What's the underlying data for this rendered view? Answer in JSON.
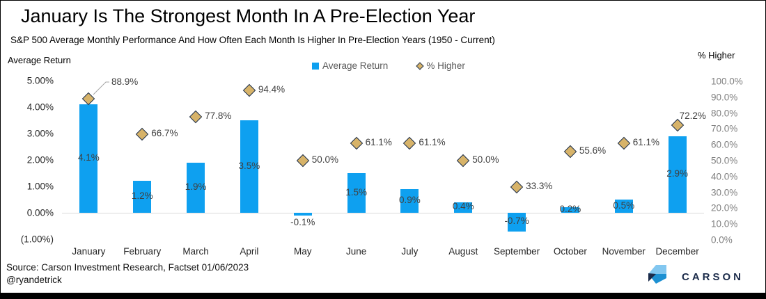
{
  "title": "January Is The Strongest Month In A Pre-Election Year",
  "subtitle": "S&P 500 Average Monthly Performance And How Often Each Month Is Higher In Pre-Election Years (1950 - Current)",
  "axes": {
    "left_title": "Average Return",
    "right_title": "% Higher"
  },
  "legend": {
    "items": [
      {
        "label": "Average Return",
        "marker": "square-icon",
        "color": "#0EA0F0"
      },
      {
        "label": "% Higher",
        "marker": "diamond-icon",
        "color": "#D7B369"
      }
    ]
  },
  "chart_data": {
    "type": "combo",
    "categories": [
      "January",
      "February",
      "March",
      "April",
      "May",
      "June",
      "July",
      "August",
      "September",
      "October",
      "November",
      "December"
    ],
    "series": [
      {
        "name": "Average Return",
        "type": "bar",
        "axis": "left",
        "unit": "%",
        "values": [
          4.1,
          1.2,
          1.9,
          3.5,
          -0.1,
          1.5,
          0.9,
          0.4,
          -0.7,
          0.2,
          0.5,
          2.9
        ],
        "labels": [
          "4.1%",
          "1.2%",
          "1.9%",
          "3.5%",
          "-0.1%",
          "1.5%",
          "0.9%",
          "0.4%",
          "-0.7%",
          "0.2%",
          "0.5%",
          "2.9%"
        ]
      },
      {
        "name": "% Higher",
        "type": "scatter",
        "marker": "diamond",
        "axis": "right",
        "unit": "%",
        "values": [
          88.9,
          66.7,
          77.8,
          94.4,
          50.0,
          61.1,
          61.1,
          50.0,
          33.3,
          55.6,
          61.1,
          72.2
        ],
        "labels": [
          "88.9%",
          "66.7%",
          "77.8%",
          "94.4%",
          "50.0%",
          "61.1%",
          "61.1%",
          "50.0%",
          "33.3%",
          "55.6%",
          "61.1%",
          "72.2%"
        ],
        "label_positions": [
          "callout",
          "right",
          "right",
          "right",
          "right",
          "right",
          "right",
          "right",
          "right",
          "right",
          "right",
          "above"
        ]
      }
    ],
    "left_axis": {
      "title": "Average Return",
      "min": -1,
      "max": 5,
      "ticks": [
        "5.00%",
        "4.00%",
        "3.00%",
        "2.00%",
        "1.00%",
        "0.00%",
        "(1.00%)"
      ],
      "tick_values": [
        5,
        4,
        3,
        2,
        1,
        0,
        -1
      ]
    },
    "right_axis": {
      "title": "% Higher",
      "min": 0,
      "max": 100,
      "ticks": [
        "100.0%",
        "90.0%",
        "80.0%",
        "70.0%",
        "60.0%",
        "50.0%",
        "40.0%",
        "30.0%",
        "20.0%",
        "10.0%",
        "0.0%"
      ],
      "tick_values": [
        100,
        90,
        80,
        70,
        60,
        50,
        40,
        30,
        20,
        10,
        0
      ]
    },
    "gridlines": false,
    "legend_position": "top"
  },
  "footer": {
    "source": "Source: Carson Investment Research, Factset 01/06/2023",
    "handle": "@ryandetrick",
    "brand": "CARSON"
  },
  "colors": {
    "bar": "#0EA0F0",
    "diamond_fill": "#D7B369",
    "diamond_stroke": "#1F3352",
    "baseline": "#D9D9D9",
    "left_tick_text": "#262626",
    "right_tick_text": "#808080",
    "data_label": "#404040",
    "legend_text": "#595959",
    "leader_line": "#A6A6A6",
    "brand_navy": "#1B2B4A",
    "brand_light": "#82C7F0",
    "brand_mid": "#1C90D2"
  }
}
